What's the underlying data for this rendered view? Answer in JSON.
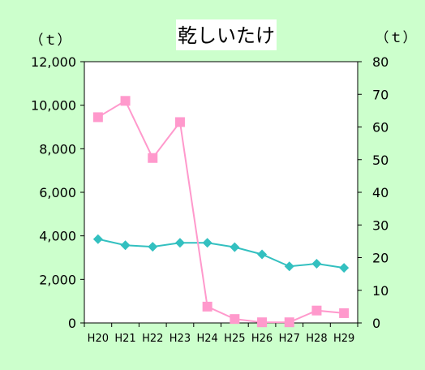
{
  "chart_data": {
    "type": "line",
    "title": "乾しいたけ",
    "categories": [
      "H20",
      "H21",
      "H22",
      "H23",
      "H24",
      "H25",
      "H26",
      "H27",
      "H28",
      "H29"
    ],
    "left_axis": {
      "unit_label": "（ｔ）",
      "range": [
        0,
        12000
      ],
      "ticks": [
        0,
        2000,
        4000,
        6000,
        8000,
        10000,
        12000
      ],
      "tick_labels": [
        "0",
        "2,000",
        "4,000",
        "6,000",
        "8,000",
        "10,000",
        "12,000"
      ]
    },
    "right_axis": {
      "unit_label": "（ｔ）",
      "range": [
        0,
        80
      ],
      "ticks": [
        0,
        10,
        20,
        30,
        40,
        50,
        60,
        70,
        80
      ],
      "tick_labels": [
        "0",
        "10",
        "20",
        "30",
        "40",
        "50",
        "60",
        "70",
        "80"
      ]
    },
    "series": [
      {
        "axis": "left",
        "marker": "diamond",
        "color": "#33c0c0",
        "values": [
          3850,
          3570,
          3500,
          3680,
          3680,
          3480,
          3150,
          2600,
          2720,
          2530
        ]
      },
      {
        "axis": "right",
        "marker": "square",
        "color": "#ff99cc",
        "values": [
          63,
          68,
          50.5,
          61.5,
          5,
          1.2,
          0.2,
          0.2,
          3.8,
          3
        ]
      }
    ],
    "grid": false,
    "legend": "none"
  }
}
